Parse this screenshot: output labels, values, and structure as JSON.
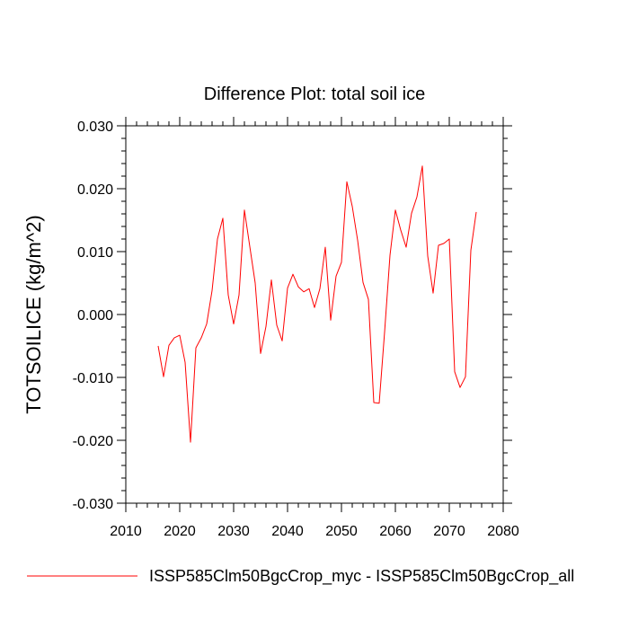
{
  "chart_data": {
    "type": "line",
    "title": "Difference Plot: total soil ice",
    "xlabel": "",
    "ylabel": "TOTSOILICE  (kg/m^2)",
    "xlim": [
      2010,
      2080
    ],
    "ylim": [
      -0.03,
      0.03
    ],
    "x_ticks": [
      2010,
      2020,
      2030,
      2040,
      2050,
      2060,
      2070,
      2080
    ],
    "x_tick_labels": [
      "2010",
      "2020",
      "2030",
      "2040",
      "2050",
      "2060",
      "2070",
      "2080"
    ],
    "y_ticks": [
      -0.03,
      -0.02,
      -0.01,
      0.0,
      0.01,
      0.02,
      0.03
    ],
    "y_tick_labels": [
      "-0.030",
      "-0.020",
      "-0.010",
      "0.000",
      "0.010",
      "0.020",
      "0.030"
    ],
    "grid": false,
    "legend_position": "bottom",
    "series": [
      {
        "name": "ISSP585Clm50BgcCrop_myc - ISSP585Clm50BgcCrop_all",
        "color": "#ff0000",
        "x": [
          2016,
          2017,
          2018,
          2019,
          2020,
          2021,
          2022,
          2023,
          2024,
          2025,
          2026,
          2027,
          2028,
          2029,
          2030,
          2031,
          2032,
          2033,
          2034,
          2035,
          2036,
          2037,
          2038,
          2039,
          2040,
          2041,
          2042,
          2043,
          2044,
          2045,
          2046,
          2047,
          2048,
          2049,
          2050,
          2051,
          2052,
          2053,
          2054,
          2055,
          2056,
          2057,
          2058,
          2059,
          2060,
          2061,
          2062,
          2063,
          2064,
          2065,
          2066,
          2067,
          2068,
          2069,
          2070,
          2071,
          2072,
          2073,
          2074,
          2075
        ],
        "values": [
          -0.005,
          -0.0099,
          -0.0049,
          -0.0037,
          -0.0033,
          -0.0076,
          -0.0203,
          -0.0053,
          -0.0037,
          -0.0015,
          0.0038,
          0.012,
          0.0153,
          0.0031,
          -0.0015,
          0.0031,
          0.0166,
          0.0108,
          0.005,
          -0.0062,
          -0.0019,
          0.0055,
          -0.0017,
          -0.0042,
          0.0042,
          0.0064,
          0.0044,
          0.0036,
          0.0041,
          0.0011,
          0.0041,
          0.0107,
          -0.0009,
          0.0061,
          0.0083,
          0.0211,
          0.0172,
          0.0118,
          0.0051,
          0.0024,
          -0.014,
          -0.0141,
          -0.0028,
          0.0094,
          0.0166,
          0.0134,
          0.0107,
          0.0161,
          0.0187,
          0.0236,
          0.0093,
          0.0034,
          0.011,
          0.0113,
          0.012,
          -0.0091,
          -0.0116,
          -0.0099,
          0.0102,
          0.0163
        ]
      }
    ]
  }
}
